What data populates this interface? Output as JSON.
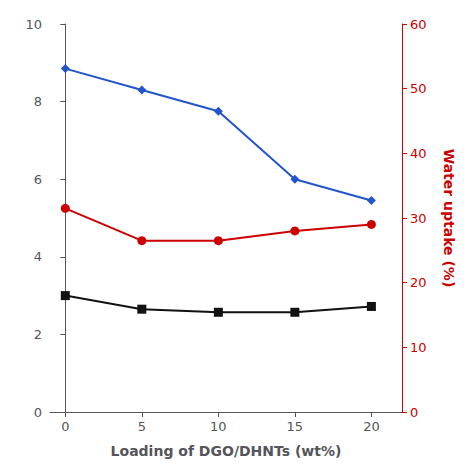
{
  "chart_data": {
    "type": "line",
    "x": [
      0,
      5,
      10,
      15,
      20
    ],
    "xlim": [
      -1,
      22
    ],
    "xticks": [
      0,
      5,
      10,
      15,
      20
    ],
    "xlabel": "Loading of DGO/DHNTs (wt%)",
    "ylim": [
      0,
      10
    ],
    "yticks": [
      0,
      2,
      4,
      6,
      8,
      10
    ],
    "y2lim": [
      0,
      60
    ],
    "y2ticks": [
      0,
      10,
      20,
      30,
      40,
      50,
      60
    ],
    "y2label": "Water uptake (%)",
    "grid": false,
    "series": [
      {
        "color": "#2255cc",
        "marker": "diamond",
        "values": [
          8.85,
          8.3,
          7.75,
          6.0,
          5.45
        ]
      },
      {
        "color": "#111111",
        "marker": "square",
        "values": [
          3.0,
          2.65,
          2.57,
          2.57,
          2.72
        ]
      },
      {
        "color": "#cc0000",
        "marker": "circle",
        "axis": "y2",
        "values": [
          31.5,
          26.5,
          26.5,
          28.0,
          29.0
        ]
      }
    ]
  }
}
